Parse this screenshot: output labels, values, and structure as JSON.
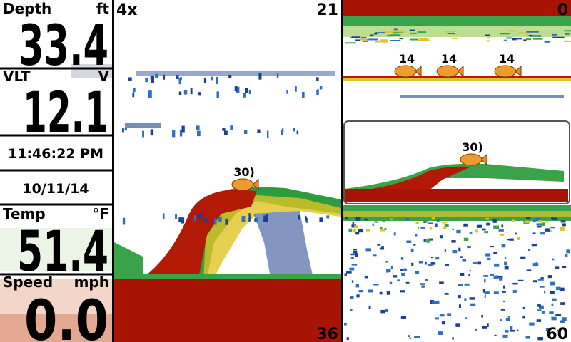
{
  "readouts": [
    {
      "label": "Depth",
      "unit": "ft",
      "value": "33.4"
    },
    {
      "label": "VLT",
      "unit": "V",
      "value": "12.1"
    },
    {
      "label": "Temp",
      "unit": "°F",
      "value": "51.4"
    },
    {
      "label": "Speed",
      "unit": "mph",
      "value": "0.0"
    }
  ],
  "time": "11:46:22 PM",
  "date": "10/11/14",
  "zoom_view": {
    "zoom": "4x",
    "top_depth": "21",
    "bottom_depth": "36",
    "fish": [
      "30)"
    ]
  },
  "full_view": {
    "top_depth": "0",
    "bottom_depth": "60",
    "fish": [
      "14",
      "14",
      "14",
      "30)"
    ]
  }
}
